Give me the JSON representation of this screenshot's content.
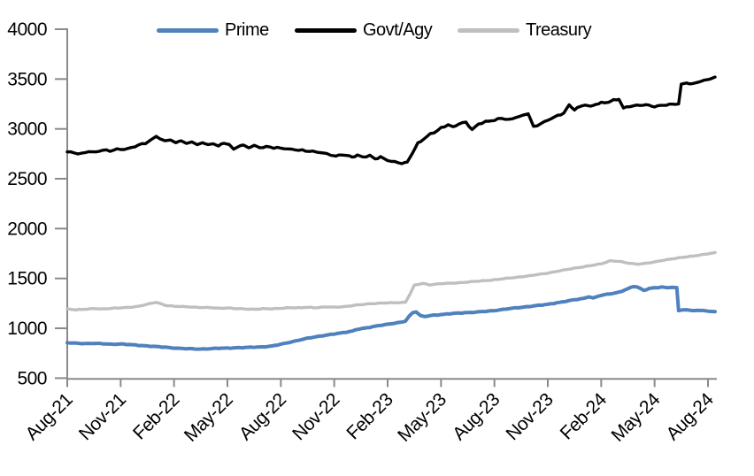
{
  "chart_data": {
    "type": "line",
    "title": "",
    "legend_position": "top",
    "grid": false,
    "background_color": "#FFFFFF",
    "axis_color": "#8A8A8A",
    "text_color": "#000000",
    "x": {
      "labels": [
        "Aug-21",
        "Nov-21",
        "Feb-22",
        "May-22",
        "Aug-22",
        "Nov-22",
        "Feb-23",
        "May-23",
        "Aug-23",
        "Nov-23",
        "Feb-24",
        "May-24",
        "Aug-24"
      ],
      "unit": "months",
      "label_rotation": -45,
      "range_months": [
        0,
        36.4
      ]
    },
    "y": {
      "min": 500,
      "max": 4000,
      "step": 500,
      "tick_labels": [
        "4000",
        "3500",
        "3000",
        "2500",
        "2000",
        "1500",
        "1000",
        "500"
      ]
    },
    "series": [
      {
        "name": "Treasury",
        "color": "#BFBFBF",
        "line_width": 3.4,
        "noise": 3.5,
        "points": [
          [
            0,
            1192
          ],
          [
            0.5,
            1187
          ],
          [
            1,
            1191
          ],
          [
            1.5,
            1197
          ],
          [
            2,
            1194
          ],
          [
            2.5,
            1201
          ],
          [
            3,
            1204
          ],
          [
            3.5,
            1211
          ],
          [
            4,
            1221
          ],
          [
            4.5,
            1241
          ],
          [
            5,
            1261
          ],
          [
            5.25,
            1247
          ],
          [
            5.5,
            1231
          ],
          [
            6,
            1221
          ],
          [
            6.5,
            1217
          ],
          [
            7,
            1214
          ],
          [
            7.5,
            1209
          ],
          [
            8,
            1207
          ],
          [
            8.5,
            1201
          ],
          [
            9,
            1204
          ],
          [
            9.5,
            1197
          ],
          [
            10,
            1194
          ],
          [
            10.5,
            1191
          ],
          [
            11,
            1197
          ],
          [
            11.5,
            1194
          ],
          [
            12,
            1201
          ],
          [
            12.5,
            1207
          ],
          [
            13,
            1204
          ],
          [
            13.5,
            1211
          ],
          [
            14,
            1207
          ],
          [
            14.5,
            1214
          ],
          [
            15,
            1211
          ],
          [
            15.5,
            1217
          ],
          [
            16,
            1227
          ],
          [
            16.5,
            1237
          ],
          [
            17,
            1247
          ],
          [
            17.5,
            1251
          ],
          [
            18,
            1254
          ],
          [
            18.5,
            1257
          ],
          [
            19,
            1261
          ],
          [
            19.25,
            1340
          ],
          [
            19.5,
            1430
          ],
          [
            19.75,
            1444
          ],
          [
            20,
            1450
          ],
          [
            20.35,
            1436
          ],
          [
            20.7,
            1444
          ],
          [
            21,
            1447
          ],
          [
            21.5,
            1451
          ],
          [
            22,
            1457
          ],
          [
            22.5,
            1464
          ],
          [
            23,
            1471
          ],
          [
            23.5,
            1479
          ],
          [
            24,
            1487
          ],
          [
            24.5,
            1497
          ],
          [
            25,
            1507
          ],
          [
            25.5,
            1517
          ],
          [
            26,
            1527
          ],
          [
            26.5,
            1541
          ],
          [
            27,
            1554
          ],
          [
            27.5,
            1571
          ],
          [
            28,
            1587
          ],
          [
            28.5,
            1604
          ],
          [
            29,
            1617
          ],
          [
            29.5,
            1631
          ],
          [
            30,
            1647
          ],
          [
            30.5,
            1677
          ],
          [
            31,
            1671
          ],
          [
            31.5,
            1654
          ],
          [
            32,
            1644
          ],
          [
            32.5,
            1651
          ],
          [
            33,
            1664
          ],
          [
            33.5,
            1684
          ],
          [
            34,
            1697
          ],
          [
            34.5,
            1709
          ],
          [
            35,
            1721
          ],
          [
            35.5,
            1734
          ],
          [
            36,
            1747
          ],
          [
            36.4,
            1760
          ]
        ]
      },
      {
        "name": "Prime",
        "color": "#4F81BD",
        "line_width": 4,
        "noise": 3.5,
        "points": [
          [
            0,
            855
          ],
          [
            0.5,
            850
          ],
          [
            1,
            847
          ],
          [
            1.5,
            849
          ],
          [
            2,
            844
          ],
          [
            2.5,
            840
          ],
          [
            3,
            843
          ],
          [
            3.5,
            836
          ],
          [
            4,
            830
          ],
          [
            4.5,
            823
          ],
          [
            5,
            816
          ],
          [
            5.5,
            810
          ],
          [
            6,
            803
          ],
          [
            6.5,
            797
          ],
          [
            7,
            794
          ],
          [
            7.5,
            792
          ],
          [
            8,
            795
          ],
          [
            8.5,
            799
          ],
          [
            9,
            802
          ],
          [
            9.5,
            805
          ],
          [
            10,
            807
          ],
          [
            10.5,
            811
          ],
          [
            11,
            814
          ],
          [
            11.5,
            821
          ],
          [
            12,
            840
          ],
          [
            12.5,
            860
          ],
          [
            13,
            880
          ],
          [
            13.5,
            900
          ],
          [
            14,
            916
          ],
          [
            14.5,
            930
          ],
          [
            15,
            943
          ],
          [
            15.5,
            956
          ],
          [
            16,
            972
          ],
          [
            16.3,
            990
          ],
          [
            16.6,
            998
          ],
          [
            17,
            1010
          ],
          [
            17.5,
            1028
          ],
          [
            18,
            1040
          ],
          [
            18.4,
            1052
          ],
          [
            18.7,
            1058
          ],
          [
            19,
            1072
          ],
          [
            19.2,
            1118
          ],
          [
            19.4,
            1156
          ],
          [
            19.6,
            1164
          ],
          [
            19.85,
            1126
          ],
          [
            20.1,
            1120
          ],
          [
            20.5,
            1130
          ],
          [
            21,
            1138
          ],
          [
            21.5,
            1146
          ],
          [
            22,
            1153
          ],
          [
            22.5,
            1158
          ],
          [
            23,
            1163
          ],
          [
            23.5,
            1170
          ],
          [
            24,
            1178
          ],
          [
            24.5,
            1190
          ],
          [
            25,
            1200
          ],
          [
            25.5,
            1210
          ],
          [
            26,
            1220
          ],
          [
            26.5,
            1230
          ],
          [
            27,
            1240
          ],
          [
            27.5,
            1256
          ],
          [
            28,
            1270
          ],
          [
            28.5,
            1286
          ],
          [
            29,
            1300
          ],
          [
            29.3,
            1316
          ],
          [
            29.55,
            1303
          ],
          [
            29.8,
            1320
          ],
          [
            30,
            1330
          ],
          [
            30.5,
            1346
          ],
          [
            31,
            1362
          ],
          [
            31.5,
            1396
          ],
          [
            31.8,
            1420
          ],
          [
            32,
            1416
          ],
          [
            32.4,
            1380
          ],
          [
            32.7,
            1400
          ],
          [
            33,
            1406
          ],
          [
            33.4,
            1414
          ],
          [
            33.7,
            1406
          ],
          [
            34,
            1410
          ],
          [
            34.25,
            1408
          ],
          [
            34.35,
            1178
          ],
          [
            34.6,
            1186
          ],
          [
            35,
            1180
          ],
          [
            35.4,
            1176
          ],
          [
            35.7,
            1180
          ],
          [
            36,
            1171
          ],
          [
            36.4,
            1167
          ]
        ]
      },
      {
        "name": "Govt/Agy",
        "color": "#000000",
        "line_width": 3.4,
        "noise": 8,
        "points": [
          [
            0,
            2775
          ],
          [
            0.4,
            2760
          ],
          [
            0.8,
            2752
          ],
          [
            1.2,
            2772
          ],
          [
            1.6,
            2764
          ],
          [
            2,
            2788
          ],
          [
            2.4,
            2780
          ],
          [
            2.8,
            2798
          ],
          [
            3.2,
            2796
          ],
          [
            3.6,
            2810
          ],
          [
            4,
            2836
          ],
          [
            4.4,
            2856
          ],
          [
            4.7,
            2888
          ],
          [
            5,
            2928
          ],
          [
            5.2,
            2904
          ],
          [
            5.5,
            2878
          ],
          [
            5.8,
            2896
          ],
          [
            6.1,
            2860
          ],
          [
            6.4,
            2884
          ],
          [
            6.7,
            2850
          ],
          [
            7,
            2870
          ],
          [
            7.3,
            2836
          ],
          [
            7.6,
            2866
          ],
          [
            7.9,
            2840
          ],
          [
            8.2,
            2856
          ],
          [
            8.5,
            2830
          ],
          [
            8.8,
            2853
          ],
          [
            9.1,
            2846
          ],
          [
            9.35,
            2790
          ],
          [
            9.6,
            2826
          ],
          [
            9.9,
            2836
          ],
          [
            10.2,
            2816
          ],
          [
            10.5,
            2830
          ],
          [
            10.8,
            2813
          ],
          [
            11.2,
            2820
          ],
          [
            11.6,
            2810
          ],
          [
            12,
            2806
          ],
          [
            12.4,
            2799
          ],
          [
            12.8,
            2793
          ],
          [
            13.2,
            2786
          ],
          [
            13.6,
            2776
          ],
          [
            14,
            2768
          ],
          [
            14.4,
            2756
          ],
          [
            14.8,
            2740
          ],
          [
            15.1,
            2724
          ],
          [
            15.4,
            2746
          ],
          [
            15.7,
            2730
          ],
          [
            16,
            2720
          ],
          [
            16.3,
            2736
          ],
          [
            16.6,
            2716
          ],
          [
            17,
            2730
          ],
          [
            17.3,
            2700
          ],
          [
            17.6,
            2720
          ],
          [
            18,
            2686
          ],
          [
            18.4,
            2670
          ],
          [
            18.8,
            2654
          ],
          [
            19.1,
            2666
          ],
          [
            19.4,
            2758
          ],
          [
            19.7,
            2856
          ],
          [
            20,
            2896
          ],
          [
            20.4,
            2950
          ],
          [
            20.8,
            2984
          ],
          [
            21,
            3010
          ],
          [
            21.4,
            3040
          ],
          [
            21.7,
            3020
          ],
          [
            22,
            3050
          ],
          [
            22.4,
            3066
          ],
          [
            22.75,
            2990
          ],
          [
            23.1,
            3046
          ],
          [
            23.5,
            3070
          ],
          [
            24,
            3086
          ],
          [
            24.4,
            3106
          ],
          [
            24.8,
            3090
          ],
          [
            25.2,
            3116
          ],
          [
            25.6,
            3136
          ],
          [
            25.9,
            3152
          ],
          [
            26.2,
            3020
          ],
          [
            26.6,
            3050
          ],
          [
            27,
            3086
          ],
          [
            27.4,
            3120
          ],
          [
            27.9,
            3156
          ],
          [
            28.2,
            3242
          ],
          [
            28.5,
            3192
          ],
          [
            28.8,
            3222
          ],
          [
            29.1,
            3246
          ],
          [
            29.4,
            3222
          ],
          [
            29.7,
            3250
          ],
          [
            30,
            3260
          ],
          [
            30.4,
            3270
          ],
          [
            30.7,
            3286
          ],
          [
            31,
            3300
          ],
          [
            31.25,
            3206
          ],
          [
            31.6,
            3226
          ],
          [
            32,
            3232
          ],
          [
            32.5,
            3242
          ],
          [
            33,
            3226
          ],
          [
            33.5,
            3236
          ],
          [
            34,
            3246
          ],
          [
            34.35,
            3250
          ],
          [
            34.5,
            3446
          ],
          [
            34.8,
            3460
          ],
          [
            35.1,
            3450
          ],
          [
            35.5,
            3470
          ],
          [
            35.8,
            3486
          ],
          [
            36.1,
            3500
          ],
          [
            36.4,
            3520
          ]
        ]
      }
    ],
    "legend_order": [
      "Prime",
      "Govt/Agy",
      "Treasury"
    ]
  }
}
